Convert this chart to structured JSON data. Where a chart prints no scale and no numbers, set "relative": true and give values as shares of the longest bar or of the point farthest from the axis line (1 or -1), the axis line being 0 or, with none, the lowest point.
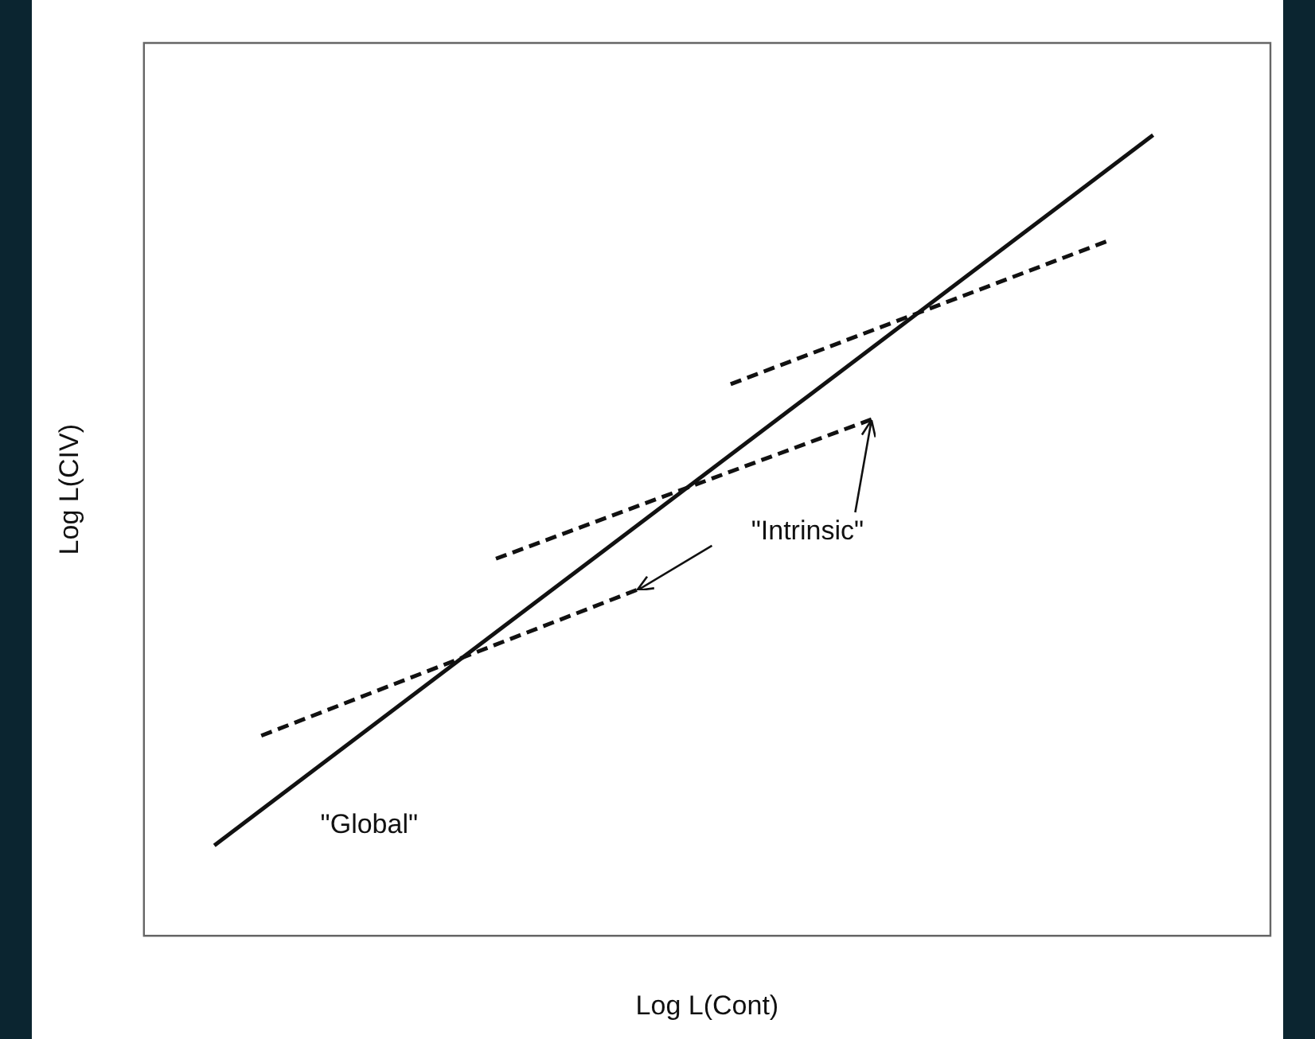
{
  "chart_data": {
    "type": "line",
    "xlabel": "Log L(Cont)",
    "ylabel": "Log L(CIV)",
    "relative": true,
    "legend": false,
    "marker": "none",
    "categories": [
      null,
      null,
      null,
      null,
      null,
      null,
      null,
      null,
      null,
      null,
      null,
      null,
      null,
      null,
      null,
      null,
      null,
      null,
      null,
      null,
      null,
      null,
      null,
      null
    ],
    "series": [
      {
        "values": [
          null,
          0.113,
          null,
          null,
          null,
          null,
          null,
          null,
          null,
          null,
          null,
          null,
          null,
          null,
          null,
          null,
          null,
          null,
          null,
          null,
          null,
          1,
          null,
          null
        ],
        "color": "#111111",
        "line_style": "solid"
      },
      {
        "values": [
          null,
          null,
          0.25,
          null,
          null,
          null,
          null,
          null,
          null,
          null,
          0.432,
          null,
          null,
          null,
          null,
          null,
          null,
          null,
          null,
          null,
          null,
          null,
          null,
          null
        ],
        "color": "#111111",
        "line_style": "dashed"
      },
      {
        "values": [
          null,
          null,
          null,
          null,
          null,
          null,
          null,
          0.471,
          null,
          null,
          null,
          null,
          null,
          null,
          null,
          0.645,
          null,
          null,
          null,
          null,
          null,
          null,
          null,
          null
        ],
        "color": "#111111",
        "line_style": "dashed"
      },
      {
        "values": [
          null,
          null,
          null,
          null,
          null,
          null,
          null,
          null,
          null,
          null,
          null,
          null,
          0.689,
          null,
          null,
          null,
          null,
          null,
          null,
          null,
          0.867,
          null,
          null,
          null
        ],
        "color": "#111111",
        "line_style": "dashed"
      }
    ],
    "annotations": [
      "\"Intrinsic\"",
      "\"Global\""
    ]
  }
}
